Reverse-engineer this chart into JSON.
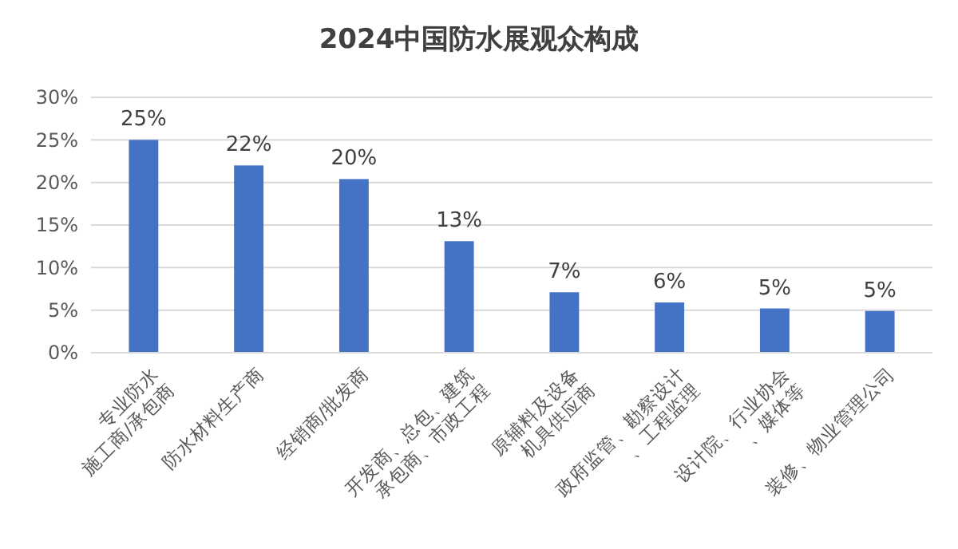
{
  "chart_data": {
    "type": "bar",
    "title": "2024中国防水展观众构成",
    "categories": [
      "专业防水\n施工商/承包商",
      "防水材料生产商",
      "经销商/批发商",
      "开发商、总包、建筑\n承包商、市政工程",
      "原辅料及设备\n机具供应商",
      "政府监管、勘察设计\n、工程监理",
      "设计院、行业协会\n、媒体等",
      "装修、物业管理公司"
    ],
    "values": [
      25,
      22,
      20.4,
      13.1,
      7.1,
      5.9,
      5.2,
      4.9
    ],
    "value_labels": [
      "25%",
      "22%",
      "20%",
      "13%",
      "7%",
      "6%",
      "5%",
      "5%"
    ],
    "color": "#4472c4",
    "ylim": [
      0,
      30
    ],
    "yticks": [
      {
        "value": 0,
        "label": "0%"
      },
      {
        "value": 5,
        "label": "5%"
      },
      {
        "value": 10,
        "label": "10%"
      },
      {
        "value": 15,
        "label": "15%"
      },
      {
        "value": 20,
        "label": "20%"
      },
      {
        "value": 25,
        "label": "25%"
      },
      {
        "value": 30,
        "label": "30%"
      }
    ],
    "grid": "y"
  }
}
